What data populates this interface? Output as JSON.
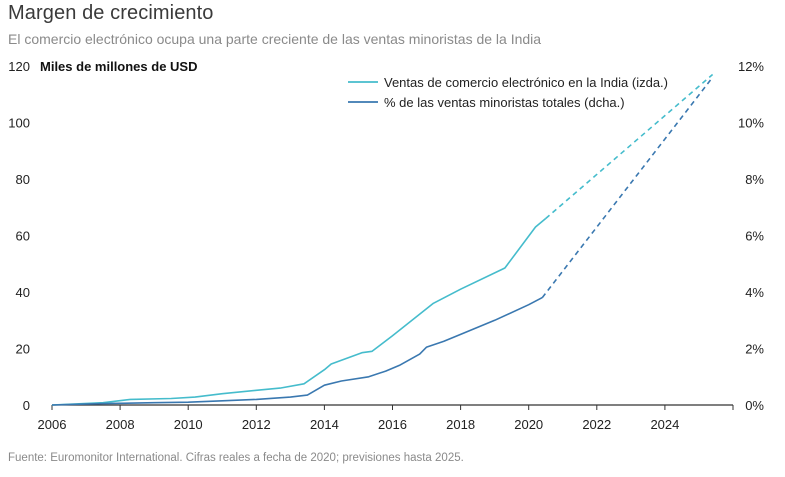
{
  "header": {
    "title": "Margen de crecimiento",
    "subtitle": "El comercio electrónico ocupa una parte creciente de las ventas minoristas de la India"
  },
  "footer": {
    "source": "Fuente: Euromonitor International. Cifras reales a fecha de 2020; previsiones hasta 2025."
  },
  "colors": {
    "ecommerce": "#45bccc",
    "share": "#3a78b0",
    "axis": "#333333"
  },
  "chart_data": {
    "type": "line",
    "title": "Margen de crecimiento",
    "xlabel": "",
    "ylabel": "Miles de millones de USD",
    "xlim": [
      2006,
      2026
    ],
    "ylim_left": [
      0,
      120
    ],
    "ylim_right": [
      0,
      12
    ],
    "x_ticks": [
      "2006",
      "2008",
      "2010",
      "2012",
      "2014",
      "2016",
      "2018",
      "2020",
      "2022",
      "2024"
    ],
    "y_left_ticks": [
      "0",
      "20",
      "40",
      "60",
      "80",
      "100",
      "120"
    ],
    "y_right_ticks": [
      "0%",
      "2%",
      "4%",
      "6%",
      "8%",
      "10%",
      "12%"
    ],
    "legend_position": "top-right",
    "series": [
      {
        "name": "Ventas de comercio electrónico en la India (izda.)",
        "axis": "left",
        "color_key": "ecommerce",
        "actual": [
          [
            2006,
            0.0
          ],
          [
            2007.5,
            0.8
          ],
          [
            2008.3,
            2.0
          ],
          [
            2009.5,
            2.3
          ],
          [
            2010.2,
            2.8
          ],
          [
            2011,
            4.0
          ],
          [
            2012,
            5.2
          ],
          [
            2012.7,
            6.0
          ],
          [
            2013.4,
            7.5
          ],
          [
            2014,
            12.5
          ],
          [
            2014.2,
            14.5
          ],
          [
            2015.1,
            18.5
          ],
          [
            2015.4,
            19.0
          ],
          [
            2016,
            24.5
          ],
          [
            2017.2,
            36.0
          ],
          [
            2018,
            41.0
          ],
          [
            2019.3,
            48.5
          ],
          [
            2020.2,
            63.0
          ],
          [
            2020.5,
            66.0
          ]
        ],
        "forecast": [
          [
            2020.5,
            66.0
          ],
          [
            2025.4,
            117.0
          ]
        ]
      },
      {
        "name": "% de las ventas minoristas totales (dcha.)",
        "axis": "right",
        "color_key": "share",
        "actual": [
          [
            2006,
            0.0
          ],
          [
            2007.5,
            0.05
          ],
          [
            2009,
            0.08
          ],
          [
            2010,
            0.1
          ],
          [
            2011,
            0.15
          ],
          [
            2012,
            0.2
          ],
          [
            2013,
            0.28
          ],
          [
            2013.5,
            0.35
          ],
          [
            2014,
            0.7
          ],
          [
            2014.5,
            0.85
          ],
          [
            2015.3,
            1.0
          ],
          [
            2015.8,
            1.2
          ],
          [
            2016.2,
            1.4
          ],
          [
            2016.8,
            1.8
          ],
          [
            2017,
            2.05
          ],
          [
            2017.5,
            2.25
          ],
          [
            2018,
            2.5
          ],
          [
            2019,
            3.0
          ],
          [
            2020,
            3.55
          ],
          [
            2020.4,
            3.8
          ]
        ],
        "forecast": [
          [
            2020.4,
            3.8
          ],
          [
            2025.4,
            11.6
          ]
        ]
      }
    ]
  }
}
